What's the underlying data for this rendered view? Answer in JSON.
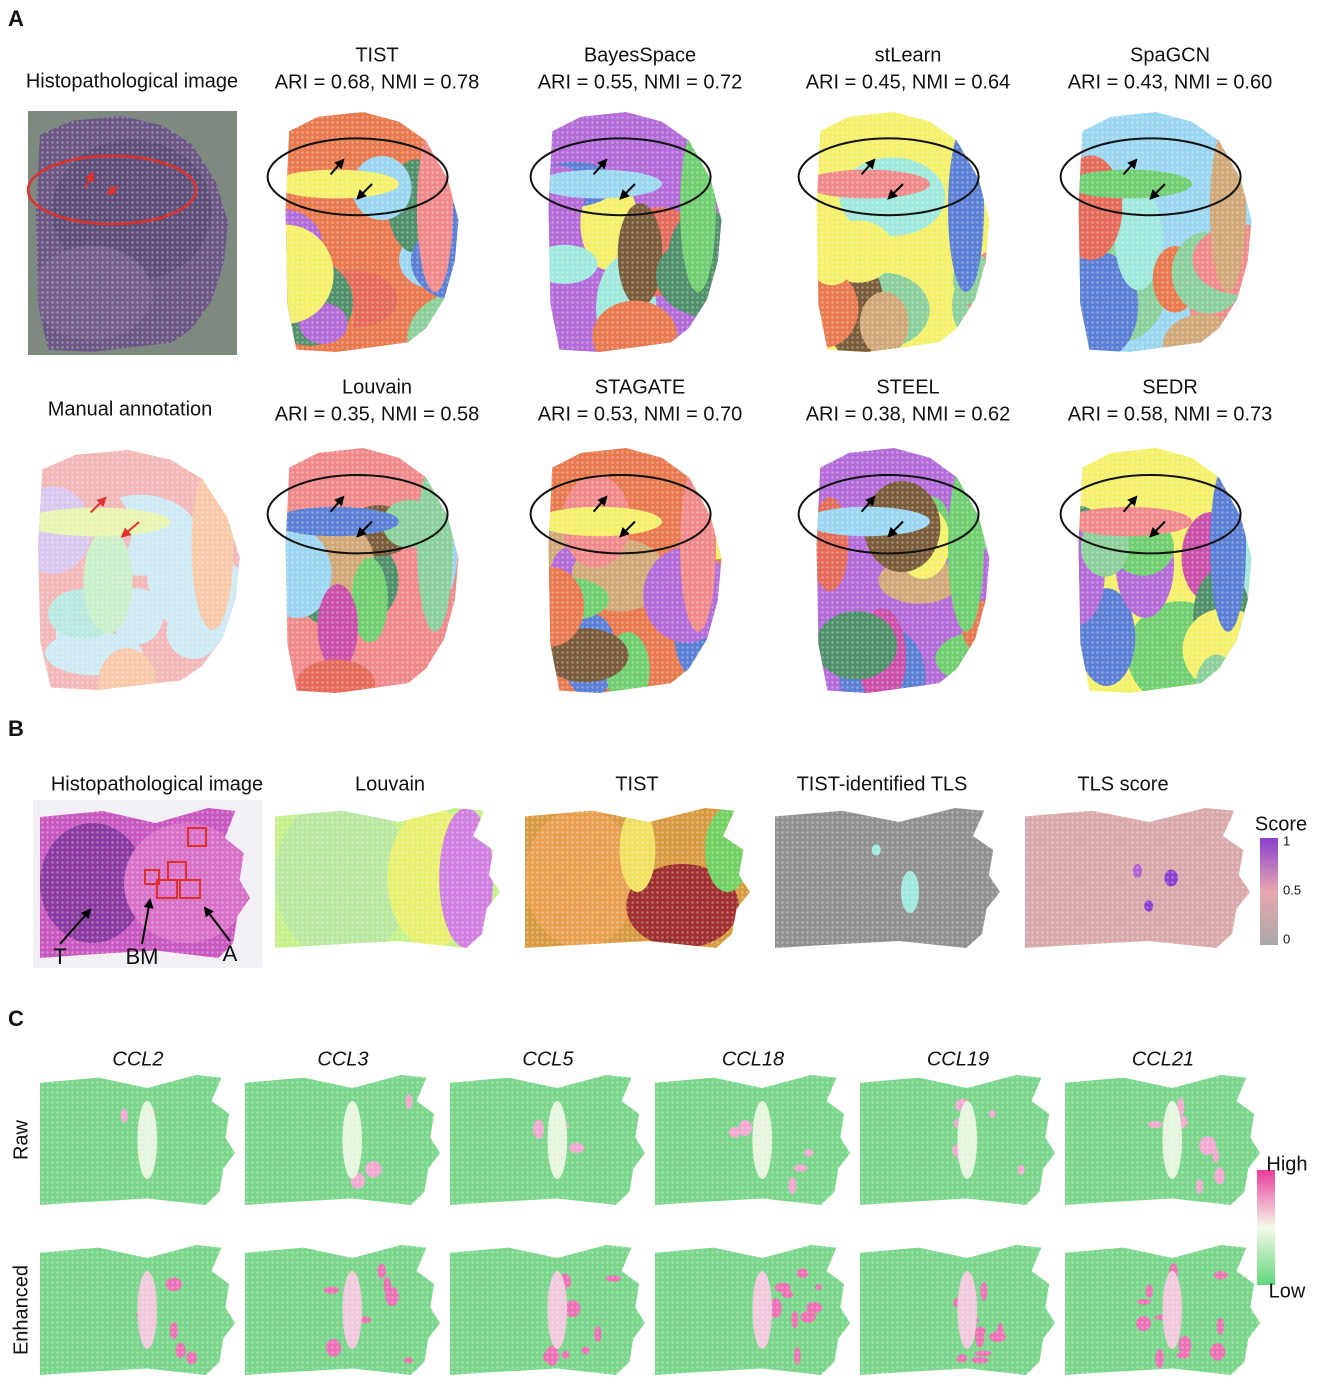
{
  "panel_a": {
    "label": "A",
    "histology_title": "Histopathological image",
    "annotation_title": "Manual annotation",
    "methods": [
      {
        "name": "TIST",
        "metrics": "ARI = 0.68, NMI = 0.78"
      },
      {
        "name": "BayesSpace",
        "metrics": "ARI = 0.55, NMI = 0.72"
      },
      {
        "name": "stLearn",
        "metrics": "ARI = 0.45, NMI = 0.64"
      },
      {
        "name": "SpaGCN",
        "metrics": "ARI = 0.43, NMI = 0.60"
      },
      {
        "name": "Louvain",
        "metrics": "ARI = 0.35, NMI = 0.58"
      },
      {
        "name": "STAGATE",
        "metrics": "ARI = 0.53, NMI = 0.70"
      },
      {
        "name": "STEEL",
        "metrics": "ARI = 0.38, NMI = 0.62"
      },
      {
        "name": "SEDR",
        "metrics": "ARI = 0.58, NMI = 0.73"
      }
    ]
  },
  "panel_b": {
    "label": "B",
    "titles": [
      "Histopathological image",
      "Louvain",
      "TIST",
      "TIST-identified TLS",
      "TLS score"
    ],
    "image_labels": [
      "T",
      "BM",
      "A"
    ],
    "colorbar": {
      "title": "Score",
      "ticks": [
        1,
        0.5,
        0
      ]
    }
  },
  "panel_c": {
    "label": "C",
    "genes": [
      "CCL2",
      "CCL3",
      "CCL5",
      "CCL18",
      "CCL19",
      "CCL21"
    ],
    "rows": [
      "Raw",
      "Enhanced"
    ],
    "colorbar": {
      "high": "High",
      "low": "Low"
    }
  }
}
